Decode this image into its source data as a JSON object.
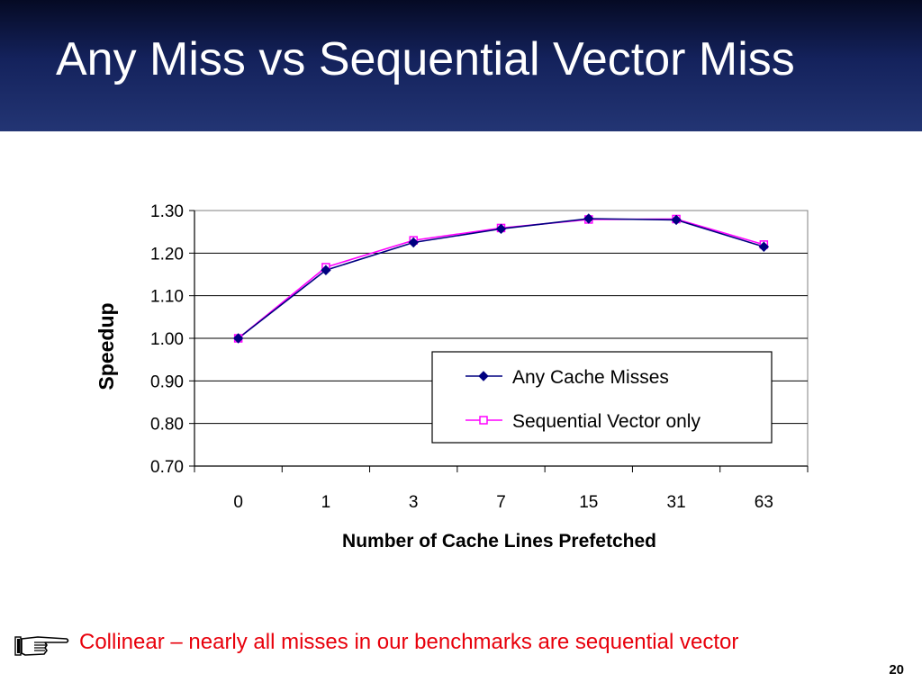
{
  "slide": {
    "title": "Any Miss vs Sequential Vector Miss",
    "note": "Collinear – nearly all misses in our benchmarks are sequential vector",
    "page_number": "20",
    "note_icon": "pointing-hand-icon"
  },
  "colors": {
    "title_bar": "#1b2a66",
    "note_text": "#e8000b",
    "series_any": "#000080",
    "series_seq": "#ff00ff"
  },
  "chart_data": {
    "type": "line",
    "title": "",
    "xlabel": "Number of Cache Lines Prefetched",
    "ylabel": "Speedup",
    "categories": [
      "0",
      "1",
      "3",
      "7",
      "15",
      "31",
      "63"
    ],
    "ylim": [
      0.7,
      1.3
    ],
    "yticks": [
      "0.70",
      "0.80",
      "0.90",
      "1.00",
      "1.10",
      "1.20",
      "1.30"
    ],
    "grid": true,
    "legend_position": "lower-right",
    "series": [
      {
        "name": "Any Cache Misses",
        "marker": "diamond",
        "color": "#000080",
        "values": [
          1.0,
          1.16,
          1.225,
          1.257,
          1.281,
          1.278,
          1.215
        ]
      },
      {
        "name": "Sequential Vector only",
        "marker": "square",
        "color": "#ff00ff",
        "values": [
          1.0,
          1.167,
          1.23,
          1.259,
          1.279,
          1.28,
          1.22
        ]
      }
    ]
  }
}
